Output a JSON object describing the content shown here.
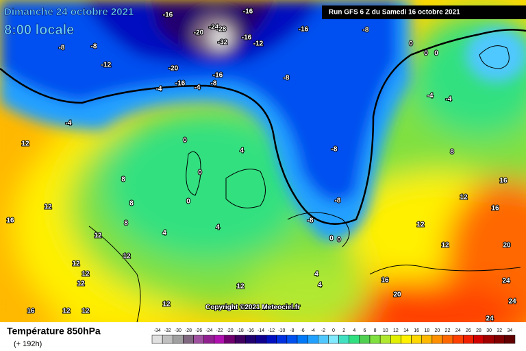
{
  "header": {
    "date": "Dimanche 24 octobre 2021",
    "time": "8:00 locale",
    "run": "Run GFS 6 Z du Samedi 16 octobre 2021"
  },
  "copyright": "Copyright ©2021 Meteociel.fr",
  "footer": {
    "title": "Température 850hPa",
    "lead": "(+ 192h)"
  },
  "scale": {
    "ticks": [
      -34,
      -32,
      -30,
      -28,
      -26,
      -24,
      -22,
      -20,
      -18,
      -16,
      -14,
      -12,
      -10,
      -8,
      -6,
      -4,
      -2,
      0,
      2,
      4,
      6,
      8,
      10,
      12,
      14,
      16,
      18,
      20,
      22,
      24,
      26,
      28,
      30,
      32,
      34
    ],
    "colors": [
      "#e0e0e0",
      "#c0c0c0",
      "#a0a0a0",
      "#806880",
      "#a050a0",
      "#902090",
      "#b010b0",
      "#700070",
      "#400060",
      "#200070",
      "#100090",
      "#0010c0",
      "#0030e0",
      "#0050f0",
      "#0078f8",
      "#20a0ff",
      "#50c8ff",
      "#80e8ff",
      "#40e0c0",
      "#30e080",
      "#50d050",
      "#80e040",
      "#b0e830",
      "#e0f000",
      "#fff000",
      "#ffd800",
      "#ffb800",
      "#ff9000",
      "#ff6800",
      "#ff4000",
      "#f02000",
      "#d00000",
      "#a00000",
      "#800000",
      "#600000"
    ]
  },
  "map_labels": [
    -16,
    -20,
    -24,
    -28,
    -32,
    -16,
    -12,
    -16,
    -8,
    -8,
    -12,
    -20,
    -16,
    -16,
    -8,
    -4,
    -4,
    -8,
    -16,
    -8,
    0,
    0,
    0,
    -4,
    -4,
    -4,
    0,
    0,
    0,
    4,
    4,
    4,
    8,
    8,
    8,
    12,
    12,
    16,
    12,
    12,
    12,
    12,
    12,
    12,
    16,
    12,
    12,
    12,
    -8,
    -8,
    -8,
    0,
    0,
    4,
    4,
    16,
    20,
    24,
    24,
    24,
    20,
    16,
    16,
    12,
    12,
    12,
    8
  ]
}
